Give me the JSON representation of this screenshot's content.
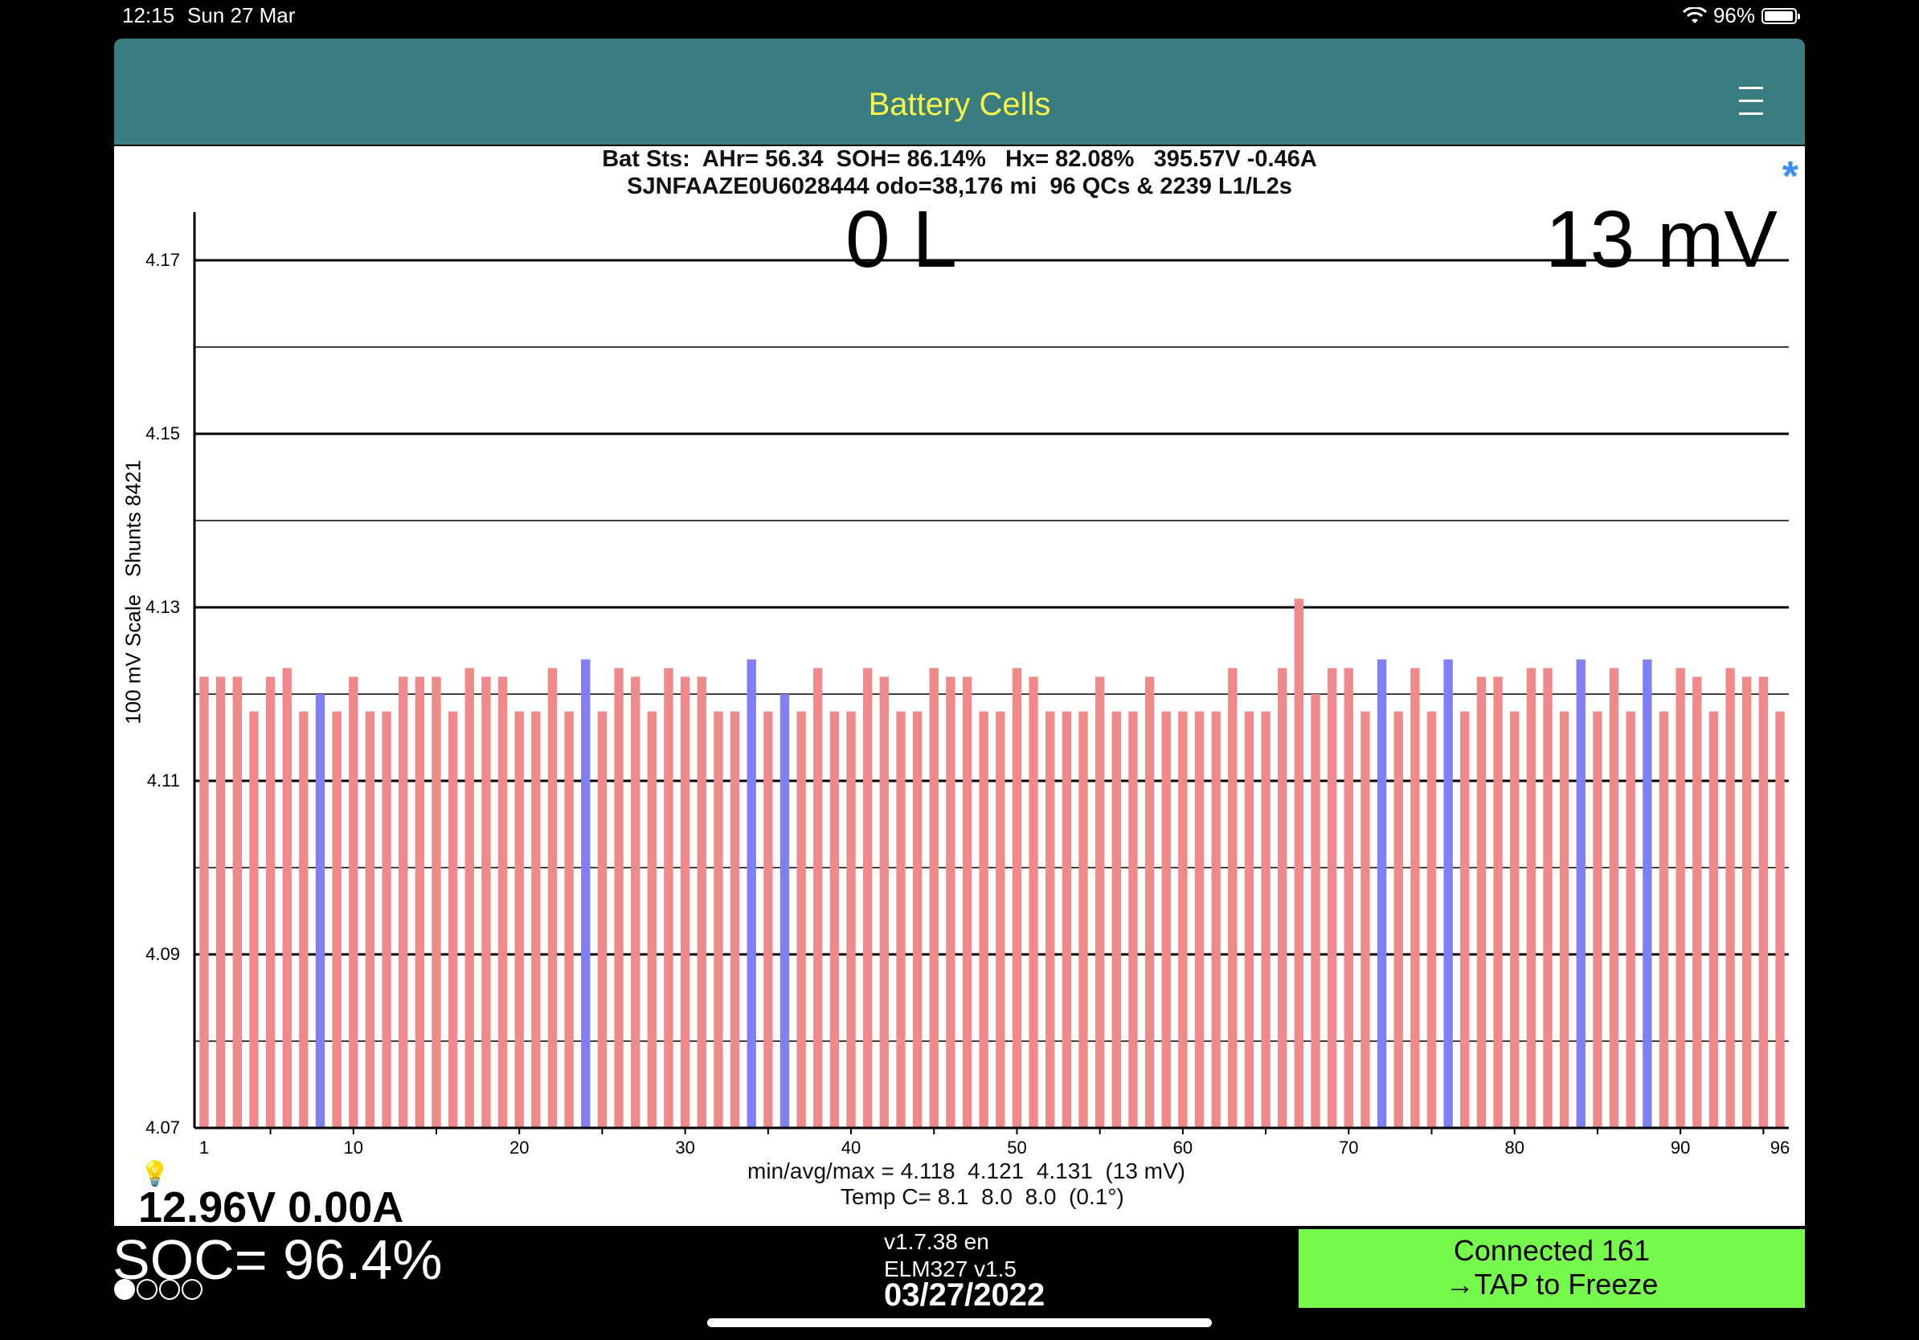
{
  "status_bar": {
    "time": "12:15",
    "date": "Sun 27 Mar",
    "battery_percent": "96%",
    "battery_level": 0.96,
    "wifi_icon": "wifi-icon",
    "battery_icon": "battery-icon"
  },
  "nav": {
    "title": "Battery Cells",
    "menu_icon": "hamburger-menu-icon",
    "colors": {
      "bar": "#3b7c80",
      "title": "#f5f54a"
    }
  },
  "header": {
    "line1": "Bat Sts:  AHr= 56.34  SOH= 86.14%   Hx= 82.08%   395.57V -0.46A",
    "line2": "SJNFAAZE0U6028444 odo=38,176 mi  96 QCs & 2239 L1/L2s",
    "asterisk": "*"
  },
  "overlay": {
    "left_big": "0 L",
    "right_big": "13 mV",
    "y_axis_label": "100 mV Scale   Shunts 8421"
  },
  "chart_data": {
    "type": "bar",
    "ylim": [
      4.07,
      4.175
    ],
    "y_ticks": [
      "4.17",
      "4.15",
      "4.13",
      "4.11",
      "4.09",
      "4.07"
    ],
    "x_ticks": [
      "1",
      "10",
      "20",
      "30",
      "40",
      "50",
      "60",
      "70",
      "80",
      "90",
      "96"
    ],
    "ylabel": "100 mV Scale   Shunts 8421",
    "colors": {
      "normal": "#f08a8a",
      "shunt": "#8080f4"
    },
    "cells": [
      4.122,
      4.122,
      4.122,
      4.118,
      4.122,
      4.123,
      4.118,
      4.12,
      4.118,
      4.122,
      4.118,
      4.118,
      4.122,
      4.122,
      4.122,
      4.118,
      4.123,
      4.122,
      4.122,
      4.118,
      4.118,
      4.123,
      4.118,
      4.124,
      4.118,
      4.123,
      4.122,
      4.118,
      4.123,
      4.122,
      4.122,
      4.118,
      4.118,
      4.124,
      4.118,
      4.12,
      4.118,
      4.123,
      4.118,
      4.118,
      4.123,
      4.122,
      4.118,
      4.118,
      4.123,
      4.122,
      4.122,
      4.118,
      4.118,
      4.123,
      4.122,
      4.118,
      4.118,
      4.118,
      4.122,
      4.118,
      4.118,
      4.122,
      4.118,
      4.118,
      4.118,
      4.118,
      4.123,
      4.118,
      4.118,
      4.123,
      4.131,
      4.12,
      4.123,
      4.123,
      4.118,
      4.124,
      4.118,
      4.123,
      4.118,
      4.124,
      4.118,
      4.122,
      4.122,
      4.118,
      4.123,
      4.123,
      4.118,
      4.124,
      4.118,
      4.123,
      4.118,
      4.124,
      4.118,
      4.123,
      4.122,
      4.118,
      4.123,
      4.122,
      4.122,
      4.118
    ],
    "shunt_cells": [
      8,
      24,
      34,
      36,
      72,
      76,
      84,
      88
    ]
  },
  "footer": {
    "line1": "min/avg/max = 4.118  4.121  4.131  (13 mV)",
    "line2": "Temp C= 8.1  8.0  8.0  (0.1°)",
    "bulb_icon": "lightbulb-icon",
    "voltage": "12.96V 0.00A"
  },
  "bottom": {
    "soc": "SOC= 96.4%",
    "version": "v1.7.38 en",
    "elm": "ELM327 v1.5",
    "date": "03/27/2022",
    "connect_line1": "Connected 161",
    "connect_line2": "→TAP to Freeze",
    "connect_color": "#77f84c",
    "page_dots": 4,
    "page_dots_active": 1
  }
}
